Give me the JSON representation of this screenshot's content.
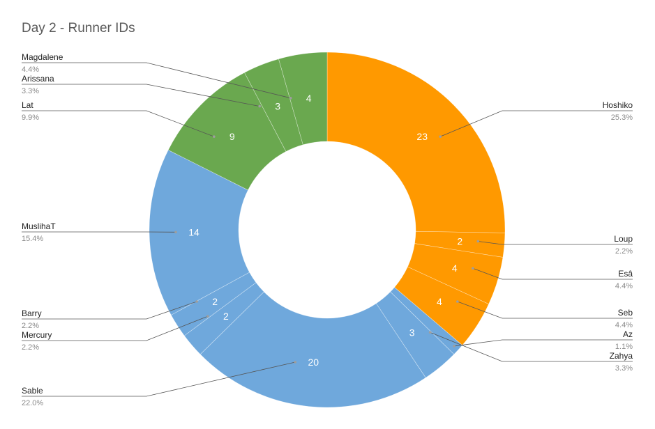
{
  "chart_data": {
    "type": "pie",
    "donut": true,
    "title": "Day 2 - Runner IDs",
    "slices": [
      {
        "name": "Hoshiko",
        "value": 23,
        "percent": "25.3%",
        "color": "#ff9900",
        "side": "right"
      },
      {
        "name": "Loup",
        "value": 2,
        "percent": "2.2%",
        "color": "#ff9900",
        "side": "right"
      },
      {
        "name": "Esâ",
        "value": 4,
        "percent": "4.4%",
        "color": "#ff9900",
        "side": "right"
      },
      {
        "name": "Seb",
        "value": 4,
        "percent": "4.4%",
        "color": "#ff9900",
        "side": "right"
      },
      {
        "name": "Az",
        "value": 1,
        "percent": "1.1%",
        "color": "#6fa8dc",
        "side": "right"
      },
      {
        "name": "Zahya",
        "value": 3,
        "percent": "3.3%",
        "color": "#6fa8dc",
        "side": "right"
      },
      {
        "name": "Sable",
        "value": 20,
        "percent": "22.0%",
        "color": "#6fa8dc",
        "side": "left"
      },
      {
        "name": "Mercury",
        "value": 2,
        "percent": "2.2%",
        "color": "#6fa8dc",
        "side": "left"
      },
      {
        "name": "Barry",
        "value": 2,
        "percent": "2.2%",
        "color": "#6fa8dc",
        "side": "left"
      },
      {
        "name": "MuslihaT",
        "value": 14,
        "percent": "15.4%",
        "color": "#6fa8dc",
        "side": "left"
      },
      {
        "name": "Lat",
        "value": 9,
        "percent": "9.9%",
        "color": "#6aa84f",
        "side": "left"
      },
      {
        "name": "Arissana",
        "value": 3,
        "percent": "3.3%",
        "color": "#6aa84f",
        "side": "left"
      },
      {
        "name": "Magdalene",
        "value": 4,
        "percent": "4.4%",
        "color": "#6aa84f",
        "side": "left"
      }
    ]
  }
}
